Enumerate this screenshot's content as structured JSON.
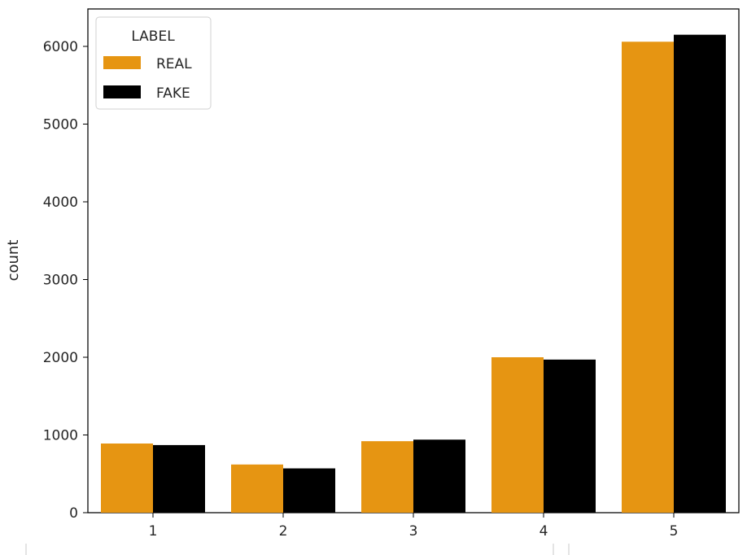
{
  "chart_data": {
    "type": "bar",
    "categories": [
      "1",
      "2",
      "3",
      "4",
      "5"
    ],
    "series": [
      {
        "name": "REAL",
        "color": "#e69512",
        "values": [
          890,
          620,
          920,
          2000,
          6060
        ]
      },
      {
        "name": "FAKE",
        "color": "#000000",
        "values": [
          870,
          570,
          940,
          1970,
          6150
        ]
      }
    ],
    "xlabel": "",
    "ylabel": "count",
    "ylim": [
      0,
      6000
    ],
    "yticks": [
      "0",
      "1000",
      "2000",
      "3000",
      "4000",
      "5000",
      "6000"
    ],
    "legend": {
      "title": "LABEL",
      "placement": "top-left"
    },
    "grid": false
  }
}
